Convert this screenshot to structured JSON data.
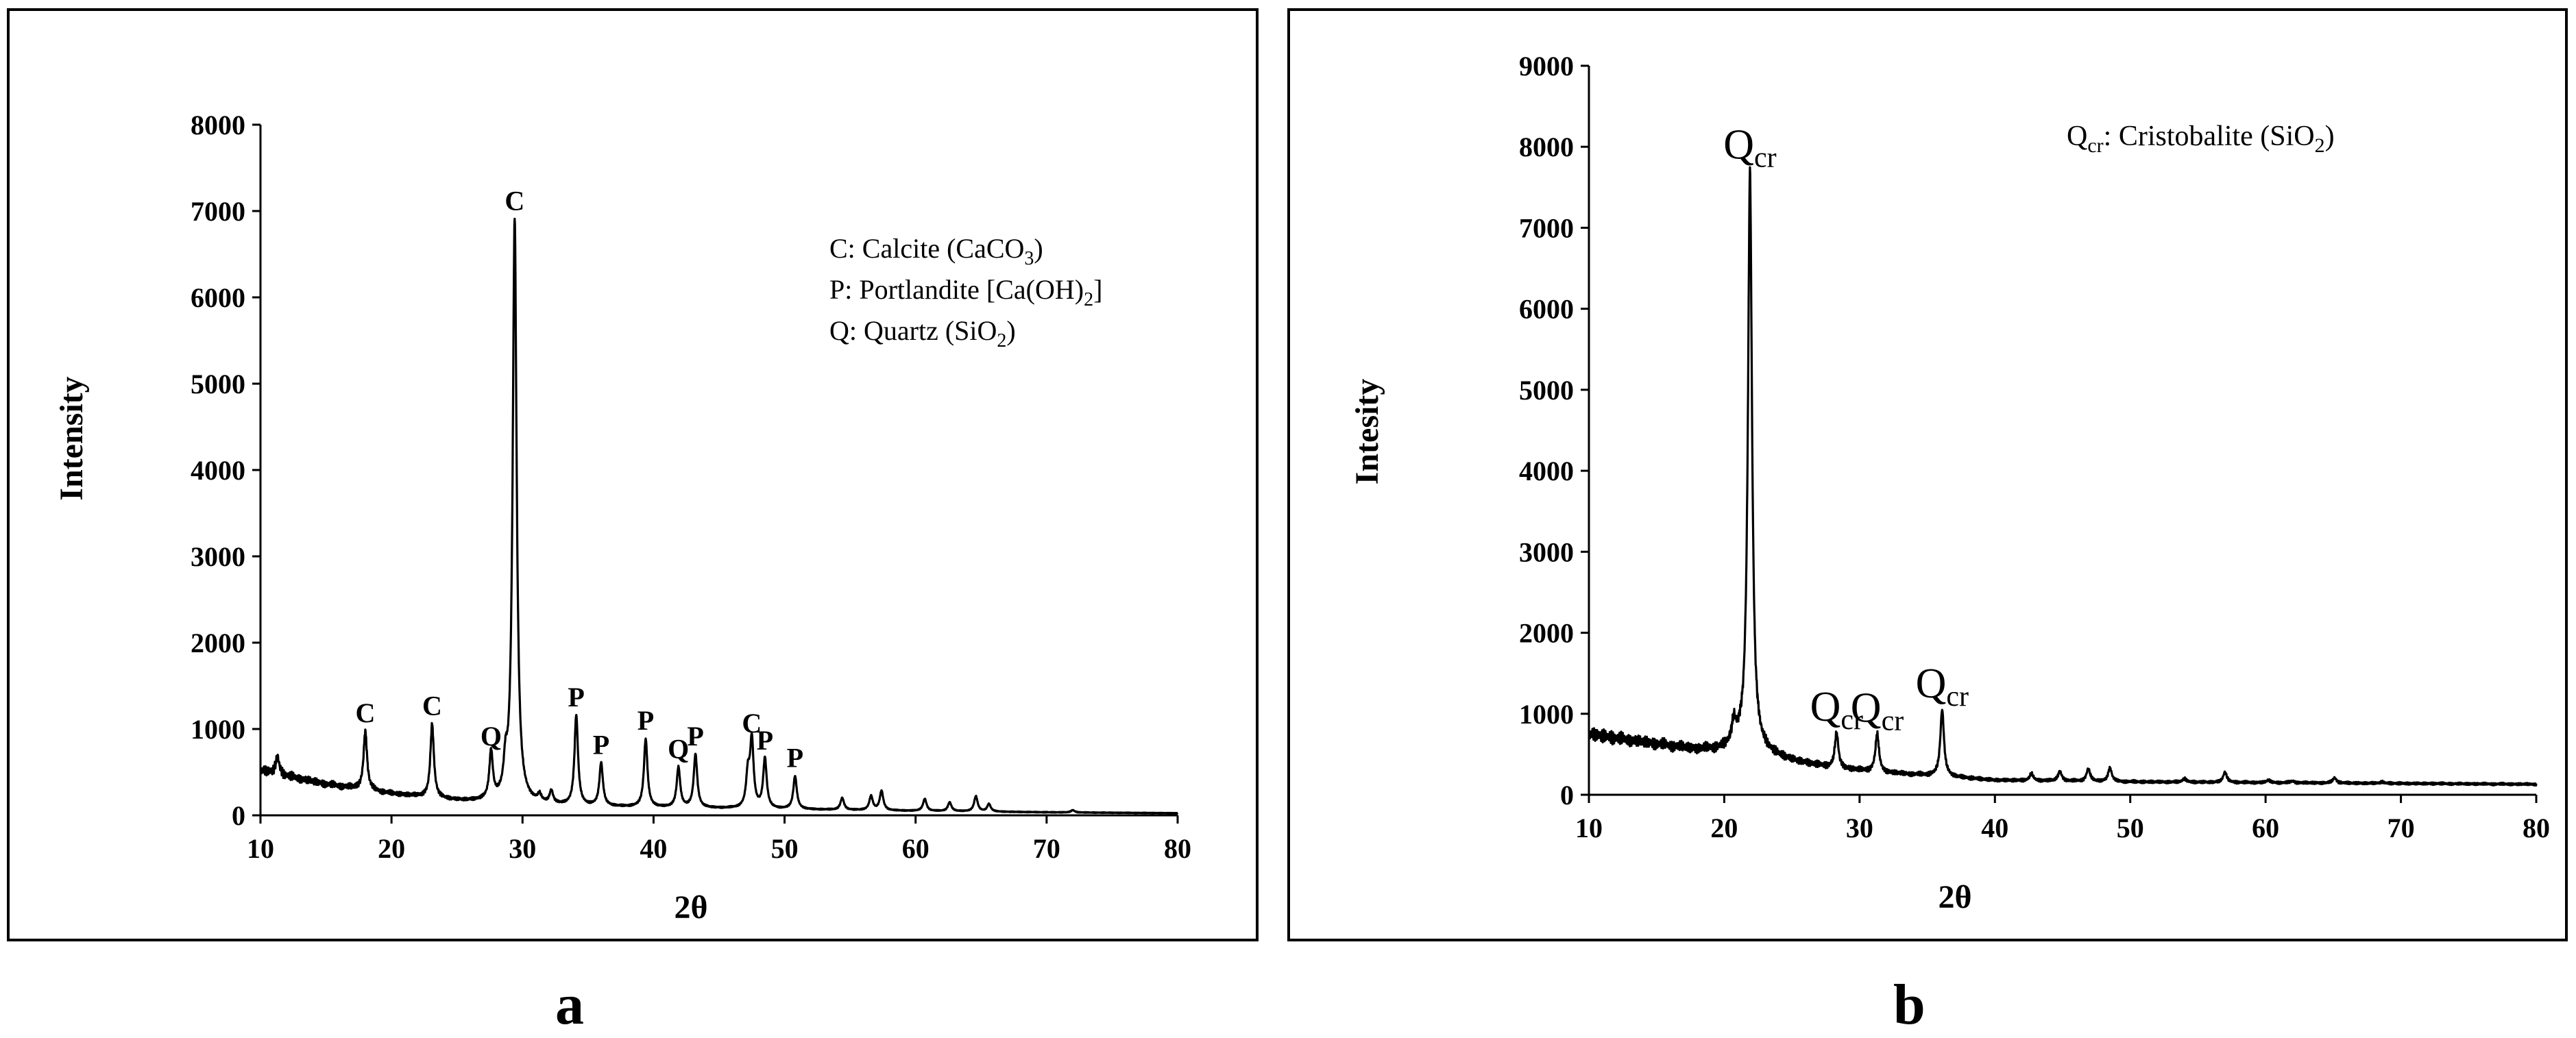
{
  "chart_data": [
    {
      "id": "a",
      "type": "line",
      "panel_label": "a",
      "title": "",
      "xlabel": "2θ",
      "ylabel": "Intensity",
      "xlim": [
        10,
        80
      ],
      "ylim": [
        0,
        8000
      ],
      "x_ticks": [
        10,
        20,
        30,
        40,
        50,
        60,
        70,
        80
      ],
      "y_ticks": [
        0,
        1000,
        2000,
        3000,
        4000,
        5000,
        6000,
        7000,
        8000
      ],
      "legend": [
        {
          "prefix": "C: Calcite (CaCO",
          "sub": "3",
          "suffix": ")"
        },
        {
          "prefix": "P: Portlandite [Ca(OH)",
          "sub": "2",
          "suffix": "]"
        },
        {
          "prefix": "Q: Quartz (SiO",
          "sub": "2",
          "suffix": ")"
        }
      ],
      "peaks": [
        {
          "x": 18.0,
          "y": 970,
          "label": "C"
        },
        {
          "x": 23.1,
          "y": 1050,
          "label": "C"
        },
        {
          "x": 27.6,
          "y": 700,
          "label": "Q"
        },
        {
          "x": 29.4,
          "y": 6900,
          "label": "C"
        },
        {
          "x": 34.1,
          "y": 1150,
          "label": "P"
        },
        {
          "x": 36.0,
          "y": 600,
          "label": "P"
        },
        {
          "x": 39.4,
          "y": 880,
          "label": "P"
        },
        {
          "x": 41.9,
          "y": 550,
          "label": "Q"
        },
        {
          "x": 43.2,
          "y": 700,
          "label": "P"
        },
        {
          "x": 47.5,
          "y": 850,
          "label": "C"
        },
        {
          "x": 48.5,
          "y": 650,
          "label": "P"
        },
        {
          "x": 50.8,
          "y": 450,
          "label": "P"
        }
      ],
      "minor_peaks": [
        {
          "x": 11.3,
          "y": 680
        },
        {
          "x": 28.7,
          "y": 480
        },
        {
          "x": 31.3,
          "y": 200
        },
        {
          "x": 32.2,
          "y": 260
        },
        {
          "x": 47.2,
          "y": 450
        },
        {
          "x": 54.4,
          "y": 200
        },
        {
          "x": 56.6,
          "y": 220
        },
        {
          "x": 57.4,
          "y": 280
        },
        {
          "x": 60.7,
          "y": 190
        },
        {
          "x": 62.6,
          "y": 150
        },
        {
          "x": 64.6,
          "y": 220
        },
        {
          "x": 65.6,
          "y": 130
        },
        {
          "x": 72.0,
          "y": 60
        }
      ],
      "baseline": [
        [
          10,
          520
        ],
        [
          15,
          360
        ],
        [
          20,
          250
        ],
        [
          25,
          170
        ],
        [
          29,
          140
        ],
        [
          33,
          110
        ],
        [
          40,
          90
        ],
        [
          50,
          70
        ],
        [
          60,
          50
        ],
        [
          70,
          35
        ],
        [
          80,
          25
        ]
      ]
    },
    {
      "id": "b",
      "type": "line",
      "panel_label": "b",
      "title": "",
      "xlabel": "2θ",
      "ylabel": "Intesity",
      "xlim": [
        10,
        80
      ],
      "ylim": [
        0,
        9000
      ],
      "x_ticks": [
        10,
        20,
        30,
        40,
        50,
        60,
        70,
        80
      ],
      "y_ticks": [
        0,
        1000,
        2000,
        3000,
        4000,
        5000,
        6000,
        7000,
        8000,
        9000
      ],
      "legend": [
        {
          "prefix": "Q",
          "sub": "cr",
          "suffix": ": Cristobalite (SiO",
          "sub2": "2",
          "suffix2": ")"
        }
      ],
      "peaks": [
        {
          "x": 21.9,
          "y": 7700,
          "label": "Q",
          "sub": "cr"
        },
        {
          "x": 28.3,
          "y": 760,
          "label": "Q",
          "sub": "cr"
        },
        {
          "x": 31.3,
          "y": 750,
          "label": "Q",
          "sub": "cr"
        },
        {
          "x": 36.1,
          "y": 1050,
          "label": "Q",
          "sub": "cr"
        }
      ],
      "minor_peaks": [
        {
          "x": 20.7,
          "y": 850
        },
        {
          "x": 42.7,
          "y": 260
        },
        {
          "x": 44.8,
          "y": 290
        },
        {
          "x": 46.9,
          "y": 320
        },
        {
          "x": 48.5,
          "y": 330
        },
        {
          "x": 54.0,
          "y": 200
        },
        {
          "x": 57.0,
          "y": 280
        },
        {
          "x": 60.2,
          "y": 180
        },
        {
          "x": 62.0,
          "y": 170
        },
        {
          "x": 65.1,
          "y": 210
        },
        {
          "x": 68.6,
          "y": 160
        },
        {
          "x": 72.7,
          "y": 140
        },
        {
          "x": 75.3,
          "y": 130
        }
      ],
      "baseline": [
        [
          10,
          750
        ],
        [
          14,
          650
        ],
        [
          18,
          560
        ],
        [
          20,
          560
        ],
        [
          21,
          620
        ],
        [
          23,
          520
        ],
        [
          25,
          420
        ],
        [
          28,
          330
        ],
        [
          32,
          270
        ],
        [
          36,
          230
        ],
        [
          40,
          180
        ],
        [
          50,
          160
        ],
        [
          60,
          150
        ],
        [
          70,
          140
        ],
        [
          80,
          130
        ]
      ]
    }
  ]
}
